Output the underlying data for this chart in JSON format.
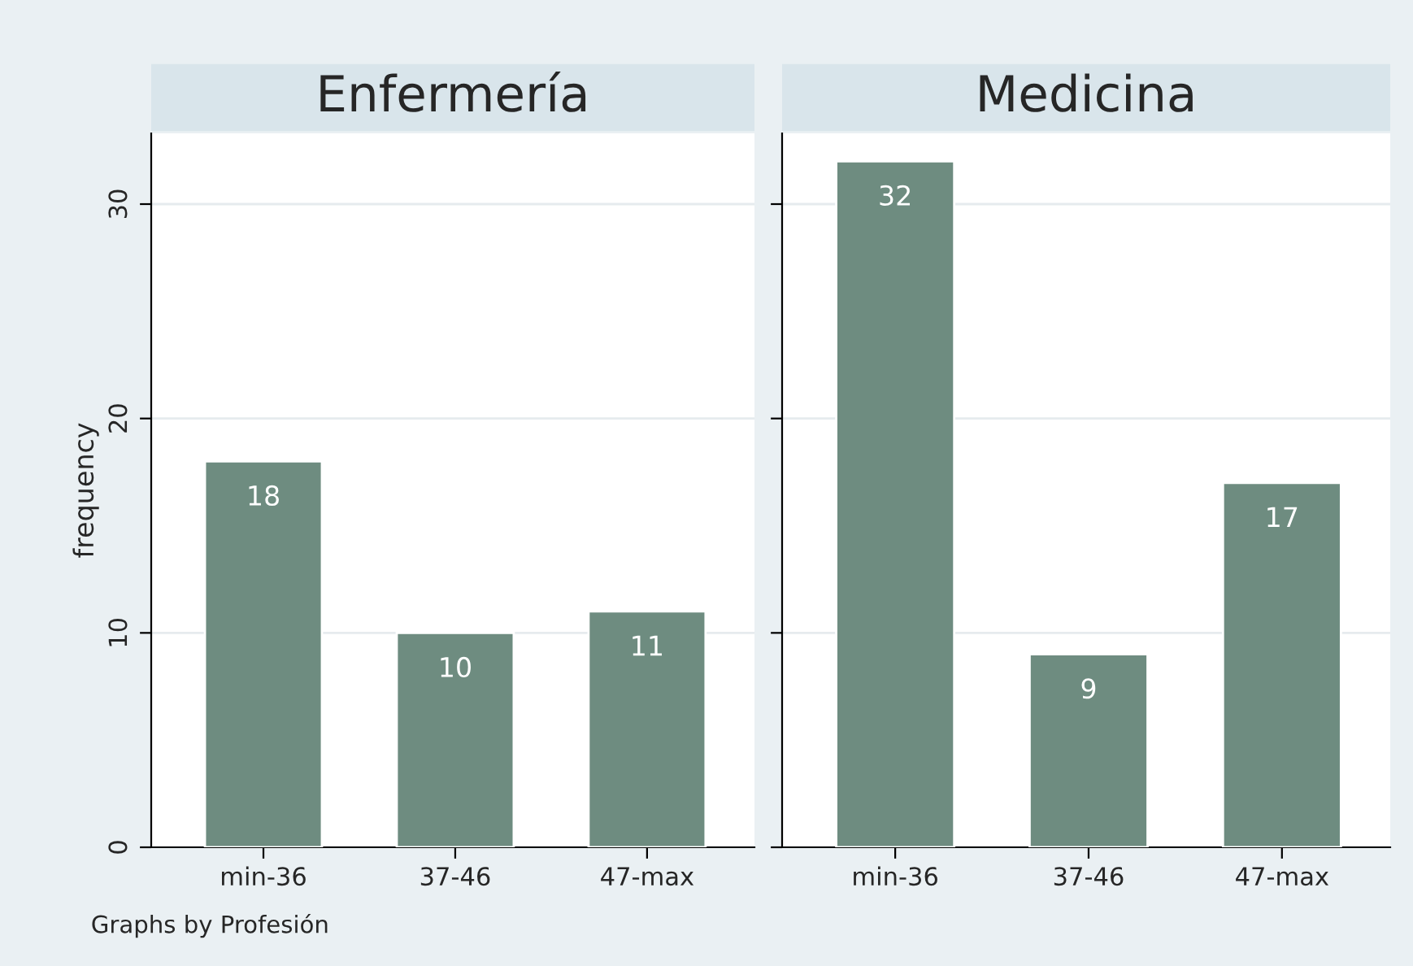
{
  "chart_data": [
    {
      "type": "bar",
      "title": "Enfermería",
      "ylabel": "frequency",
      "categories": [
        "min-36",
        "37-46",
        "47-max"
      ],
      "values": [
        18,
        10,
        11
      ],
      "color": "#6e8c80",
      "data_labels": true,
      "ylim": [
        0,
        33.3
      ],
      "yticks": [
        0,
        10,
        20,
        30
      ],
      "grid": "y",
      "annotations": [
        "Graphs by Profesión"
      ]
    },
    {
      "type": "bar",
      "title": "Medicina",
      "categories": [
        "min-36",
        "37-46",
        "47-max"
      ],
      "values": [
        32,
        9,
        17
      ],
      "color": "#6e8c80",
      "data_labels": true,
      "ylim": [
        0,
        33.3
      ],
      "yticks": [
        0,
        10,
        20,
        30
      ],
      "grid": "y",
      "tick_labels": "x"
    }
  ]
}
